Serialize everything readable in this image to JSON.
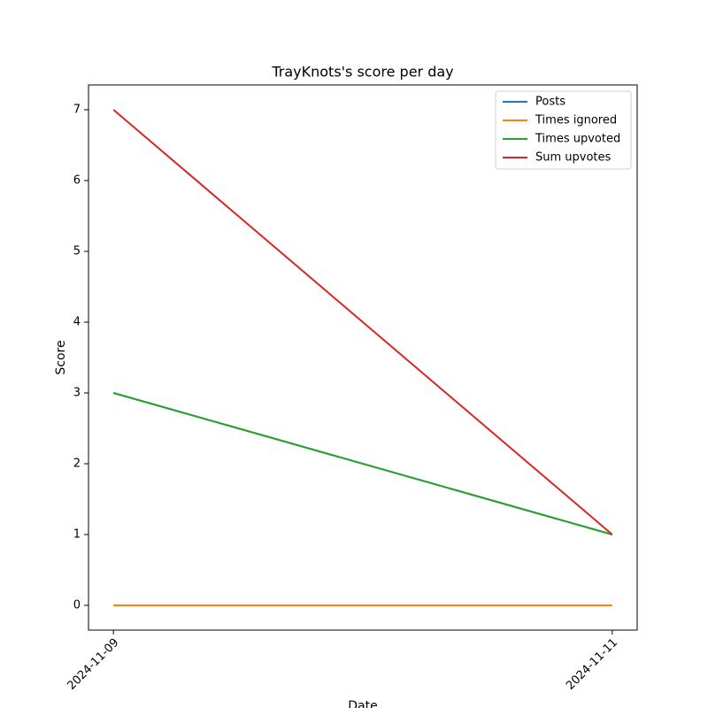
{
  "chart_data": {
    "type": "line",
    "title": "TrayKnots's score per day",
    "xlabel": "Date",
    "ylabel": "Score",
    "x": [
      "2024-11-09",
      "2024-11-11"
    ],
    "series": [
      {
        "name": "Posts",
        "color": "#1f77b4",
        "values": [
          3,
          1
        ]
      },
      {
        "name": "Times ignored",
        "color": "#ff7f0e",
        "values": [
          0,
          0
        ]
      },
      {
        "name": "Times upvoted",
        "color": "#2ca02c",
        "values": [
          3,
          1
        ]
      },
      {
        "name": "Sum upvotes",
        "color": "#d62728",
        "values": [
          7,
          1
        ]
      }
    ],
    "ylim": [
      -0.35,
      7.35
    ],
    "yticks": [
      0,
      1,
      2,
      3,
      4,
      5,
      6,
      7
    ],
    "legend": "upper right"
  }
}
